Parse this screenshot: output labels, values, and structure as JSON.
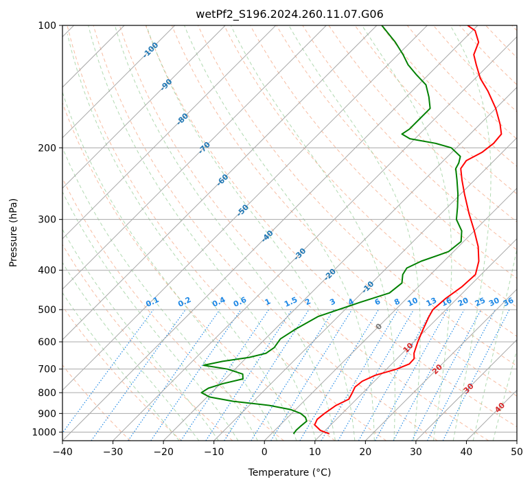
{
  "chart_data": {
    "type": "line",
    "title": "wetPf2_S196.2024.260.11.07.G06",
    "xlabel": "Temperature (°C)",
    "ylabel": "Pressure (hPa)",
    "xlim": [
      -40,
      50
    ],
    "ylim": [
      1050,
      100
    ],
    "y_scale": "log",
    "grid": true,
    "x_ticks": [
      -40,
      -30,
      -20,
      -10,
      0,
      10,
      20,
      30,
      40,
      50
    ],
    "y_ticks": [
      100,
      200,
      300,
      400,
      500,
      600,
      700,
      800,
      900,
      1000
    ],
    "skew_degrees": 45,
    "isotherm_labels": [
      -100,
      -90,
      -80,
      -70,
      -60,
      -50,
      -40,
      -30,
      -20,
      -10,
      0,
      10,
      20,
      30,
      40
    ],
    "mixing_ratio_labels": [
      "0.1",
      "0.2",
      "0.4",
      "0.6",
      "1",
      "1.5",
      "2",
      "3",
      "4",
      "6",
      "8",
      "10",
      "13",
      "16",
      "20",
      "25",
      "30",
      "36"
    ],
    "colors": {
      "temperature": "#ff0000",
      "dewpoint": "#008000",
      "isotherm_label": "#1f77b4",
      "mixing_ratio": "#1e88e5",
      "dry_adiabat": "#f4a582",
      "moist_adiabat": "#8fc98f",
      "warm_isotherm_label": "#d62728",
      "zero_label": "#777777"
    },
    "series": [
      {
        "name": "",
        "role": "temperature",
        "color": "#ff0000",
        "points": [
          {
            "p": 1010,
            "t": 11.5
          },
          {
            "p": 990,
            "t": 9.0
          },
          {
            "p": 960,
            "t": 6.8
          },
          {
            "p": 930,
            "t": 6.2
          },
          {
            "p": 900,
            "t": 6.5
          },
          {
            "p": 860,
            "t": 7.2
          },
          {
            "p": 830,
            "t": 8.5
          },
          {
            "p": 800,
            "t": 7.9
          },
          {
            "p": 775,
            "t": 7.3
          },
          {
            "p": 750,
            "t": 7.6
          },
          {
            "p": 725,
            "t": 9.0
          },
          {
            "p": 700,
            "t": 12.0
          },
          {
            "p": 680,
            "t": 13.5
          },
          {
            "p": 660,
            "t": 13.4
          },
          {
            "p": 640,
            "t": 12.3
          },
          {
            "p": 600,
            "t": 10.8
          },
          {
            "p": 560,
            "t": 9.4
          },
          {
            "p": 520,
            "t": 8.0
          },
          {
            "p": 500,
            "t": 7.4
          },
          {
            "p": 470,
            "t": 7.7
          },
          {
            "p": 440,
            "t": 8.6
          },
          {
            "p": 410,
            "t": 8.9
          },
          {
            "p": 380,
            "t": 6.9
          },
          {
            "p": 350,
            "t": 3.9
          },
          {
            "p": 320,
            "t": 0.0
          },
          {
            "p": 290,
            "t": -4.5
          },
          {
            "p": 260,
            "t": -9.2
          },
          {
            "p": 240,
            "t": -12.5
          },
          {
            "p": 225,
            "t": -15.0
          },
          {
            "p": 215,
            "t": -15.5
          },
          {
            "p": 205,
            "t": -14.0
          },
          {
            "p": 195,
            "t": -13.5
          },
          {
            "p": 185,
            "t": -13.8
          },
          {
            "p": 175,
            "t": -16.0
          },
          {
            "p": 160,
            "t": -20.0
          },
          {
            "p": 145,
            "t": -25.0
          },
          {
            "p": 135,
            "t": -29.0
          },
          {
            "p": 125,
            "t": -32.5
          },
          {
            "p": 118,
            "t": -35.0
          },
          {
            "p": 110,
            "t": -36.5
          },
          {
            "p": 103,
            "t": -39.5
          },
          {
            "p": 100,
            "t": -42.0
          }
        ]
      },
      {
        "name": "",
        "role": "dewpoint",
        "color": "#008000",
        "points": [
          {
            "p": 1010,
            "t": 4.4
          },
          {
            "p": 990,
            "t": 4.2
          },
          {
            "p": 965,
            "t": 4.3
          },
          {
            "p": 940,
            "t": 4.5
          },
          {
            "p": 920,
            "t": 3.5
          },
          {
            "p": 900,
            "t": 1.8
          },
          {
            "p": 880,
            "t": -1.0
          },
          {
            "p": 860,
            "t": -6.0
          },
          {
            "p": 840,
            "t": -14.0
          },
          {
            "p": 820,
            "t": -19.5
          },
          {
            "p": 800,
            "t": -22.0
          },
          {
            "p": 780,
            "t": -21.5
          },
          {
            "p": 760,
            "t": -19.5
          },
          {
            "p": 740,
            "t": -16.5
          },
          {
            "p": 720,
            "t": -17.5
          },
          {
            "p": 700,
            "t": -21.5
          },
          {
            "p": 685,
            "t": -27.0
          },
          {
            "p": 670,
            "t": -24.0
          },
          {
            "p": 655,
            "t": -19.5
          },
          {
            "p": 640,
            "t": -17.0
          },
          {
            "p": 620,
            "t": -16.5
          },
          {
            "p": 590,
            "t": -17.0
          },
          {
            "p": 560,
            "t": -16.0
          },
          {
            "p": 520,
            "t": -14.0
          },
          {
            "p": 480,
            "t": -8.5
          },
          {
            "p": 455,
            "t": -4.5
          },
          {
            "p": 430,
            "t": -4.0
          },
          {
            "p": 410,
            "t": -5.5
          },
          {
            "p": 395,
            "t": -6.0
          },
          {
            "p": 380,
            "t": -4.5
          },
          {
            "p": 360,
            "t": -1.0
          },
          {
            "p": 340,
            "t": -0.5
          },
          {
            "p": 320,
            "t": -2.5
          },
          {
            "p": 300,
            "t": -5.8
          },
          {
            "p": 280,
            "t": -8.0
          },
          {
            "p": 260,
            "t": -10.5
          },
          {
            "p": 240,
            "t": -13.5
          },
          {
            "p": 225,
            "t": -16.0
          },
          {
            "p": 218,
            "t": -16.5
          },
          {
            "p": 210,
            "t": -17.5
          },
          {
            "p": 200,
            "t": -21.0
          },
          {
            "p": 195,
            "t": -25.0
          },
          {
            "p": 190,
            "t": -31.0
          },
          {
            "p": 185,
            "t": -33.5
          },
          {
            "p": 180,
            "t": -33.0
          },
          {
            "p": 170,
            "t": -33.0
          },
          {
            "p": 160,
            "t": -33.0
          },
          {
            "p": 150,
            "t": -35.5
          },
          {
            "p": 140,
            "t": -38.5
          },
          {
            "p": 132,
            "t": -42.5
          },
          {
            "p": 125,
            "t": -46.0
          },
          {
            "p": 118,
            "t": -49.0
          },
          {
            "p": 110,
            "t": -53.0
          },
          {
            "p": 100,
            "t": -59.0
          }
        ]
      }
    ]
  }
}
